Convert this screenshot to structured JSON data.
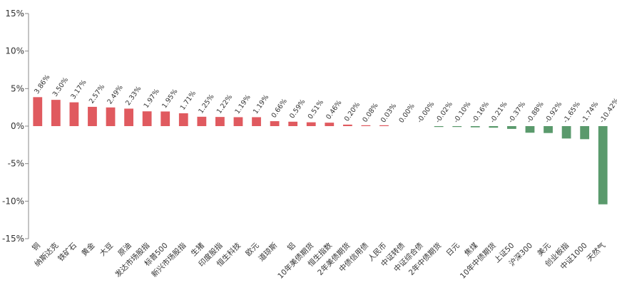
{
  "chart_data": {
    "type": "bar",
    "title": "",
    "xlabel": "",
    "ylabel": "",
    "ylim": [
      -15,
      15
    ],
    "yticks": [
      -15,
      -10,
      -5,
      0,
      5,
      10,
      15
    ],
    "ytick_labels": [
      "-15%",
      "-10%",
      "-5%",
      "0%",
      "5%",
      "10%",
      "15%"
    ],
    "grid": false,
    "legend": "none",
    "colors": {
      "positive": "#e05a5f",
      "negative": "#5a9a6c"
    },
    "categories": [
      "铜",
      "纳斯达克",
      "铁矿石",
      "黄金",
      "大豆",
      "原油",
      "发达市场股指",
      "标普500",
      "新兴市场股指",
      "生猪",
      "印度股指",
      "恒生科技",
      "欧元",
      "道琼斯",
      "铝",
      "10年美债期货",
      "恒生指数",
      "2年美债期货",
      "中债信用债",
      "人民币",
      "中证转债",
      "中证综合债",
      "2年中债期货",
      "日元",
      "焦煤",
      "10年中债期货",
      "上证50",
      "沪深300",
      "美元",
      "创业板指",
      "中证1000",
      "天然气"
    ],
    "values": [
      3.86,
      3.5,
      3.17,
      2.57,
      2.49,
      2.33,
      1.97,
      1.95,
      1.71,
      1.25,
      1.22,
      1.19,
      1.19,
      0.66,
      0.59,
      0.51,
      0.46,
      0.2,
      0.08,
      0.03,
      0.0,
      -0.0,
      -0.02,
      -0.1,
      -0.16,
      -0.21,
      -0.37,
      -0.88,
      -0.92,
      -1.65,
      -1.74,
      -10.42
    ],
    "value_labels": [
      "3.86%",
      "3.50%",
      "3.17%",
      "2.57%",
      "2.49%",
      "2.33%",
      "1.97%",
      "1.95%",
      "1.71%",
      "1.25%",
      "1.22%",
      "1.19%",
      "1.19%",
      "0.66%",
      "0.59%",
      "0.51%",
      "0.46%",
      "0.20%",
      "0.08%",
      "0.03%",
      "0.00%",
      "-0.00%",
      "-0.02%",
      "-0.10%",
      "-0.16%",
      "-0.21%",
      "-0.37%",
      "-0.88%",
      "-0.92%",
      "-1.65%",
      "-1.74%",
      "-10.42%"
    ]
  }
}
